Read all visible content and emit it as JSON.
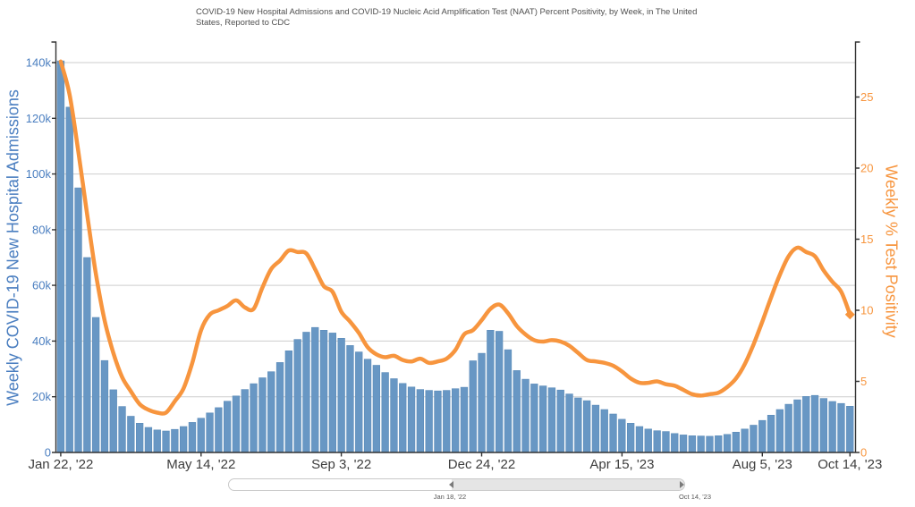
{
  "title": "COVID-19 New Hospital Admissions and COVID-19 Nucleic Acid Amplification Test (NAAT) Percent Positivity, by Week, in The United States, Reported to CDC",
  "left_axis": {
    "title": "Weekly COVID-19 New Hospital Admissions",
    "color": "#4a7ec0",
    "tick_labels": [
      "0",
      "20k",
      "40k",
      "60k",
      "80k",
      "100k",
      "120k",
      "140k"
    ],
    "tick_values_k": [
      0,
      20,
      40,
      60,
      80,
      100,
      120,
      140
    ]
  },
  "right_axis": {
    "title": "Weekly % Test Positivity",
    "color": "#f7953e",
    "tick_labels": [
      "0",
      "5",
      "10",
      "15",
      "20",
      "25"
    ],
    "tick_values": [
      0,
      5,
      10,
      15,
      20,
      25
    ]
  },
  "x_axis": {
    "tick_labels": [
      "Jan 22, '22",
      "May 14, '22",
      "Sep 3, '22",
      "Dec 24, '22",
      "Apr 15, '23",
      "Aug 5, '23",
      "Oct 14, '23"
    ],
    "tick_weeks": [
      1,
      17,
      33,
      49,
      65,
      81,
      91
    ],
    "color": "#3d3d3d"
  },
  "scrollbar": {
    "start_label": "Jan 18, '22",
    "end_label": "Oct 14, '23"
  },
  "chart_data": {
    "type": "bar+line",
    "title": "COVID-19 New Hospital Admissions and COVID-19 NAAT Percent Positivity, by Week, in The United States, Reported to CDC",
    "grid": "horizontal",
    "left_ylim_k": [
      0,
      147.4
    ],
    "right_ylim": [
      0,
      28.9
    ],
    "x": [
      "Jan 22, '22",
      "Jan 29, '22",
      "Feb 5, '22",
      "Feb 12, '22",
      "Feb 19, '22",
      "Feb 26, '22",
      "Mar 5, '22",
      "Mar 12, '22",
      "Mar 19, '22",
      "Mar 26, '22",
      "Apr 2, '22",
      "Apr 9, '22",
      "Apr 16, '22",
      "Apr 23, '22",
      "Apr 30, '22",
      "May 7, '22",
      "May 14, '22",
      "May 21, '22",
      "May 28, '22",
      "Jun 4, '22",
      "Jun 11, '22",
      "Jun 18, '22",
      "Jun 25, '22",
      "Jul 2, '22",
      "Jul 9, '22",
      "Jul 16, '22",
      "Jul 23, '22",
      "Jul 30, '22",
      "Aug 6, '22",
      "Aug 13, '22",
      "Aug 20, '22",
      "Aug 27, '22",
      "Sep 3, '22",
      "Sep 10, '22",
      "Sep 17, '22",
      "Sep 24, '22",
      "Oct 1, '22",
      "Oct 8, '22",
      "Oct 15, '22",
      "Oct 22, '22",
      "Oct 29, '22",
      "Nov 5, '22",
      "Nov 12, '22",
      "Nov 19, '22",
      "Nov 26, '22",
      "Dec 3, '22",
      "Dec 10, '22",
      "Dec 17, '22",
      "Dec 24, '22",
      "Dec 31, '22",
      "Jan 7, '23",
      "Jan 14, '23",
      "Jan 21, '23",
      "Jan 28, '23",
      "Feb 4, '23",
      "Feb 11, '23",
      "Feb 18, '23",
      "Feb 25, '23",
      "Mar 4, '23",
      "Mar 11, '23",
      "Mar 18, '23",
      "Mar 25, '23",
      "Apr 1, '23",
      "Apr 8, '23",
      "Apr 15, '23",
      "Apr 22, '23",
      "Apr 29, '23",
      "May 6, '23",
      "May 13, '23",
      "May 20, '23",
      "May 27, '23",
      "Jun 3, '23",
      "Jun 10, '23",
      "Jun 17, '23",
      "Jun 24, '23",
      "Jul 1, '23",
      "Jul 8, '23",
      "Jul 15, '23",
      "Jul 22, '23",
      "Jul 29, '23",
      "Aug 5, '23",
      "Aug 12, '23",
      "Aug 19, '23",
      "Aug 26, '23",
      "Sep 2, '23",
      "Sep 9, '23",
      "Sep 16, '23",
      "Sep 23, '23",
      "Sep 30, '23",
      "Oct 7, '23",
      "Oct 14, '23"
    ],
    "series": [
      {
        "name": "Weekly COVID-19 New Hospital Admissions",
        "type": "bar",
        "y_axis": "left",
        "color": "#6897c4",
        "units": "admissions (thousands)",
        "values": [
          140.6,
          124.0,
          95.0,
          70.0,
          48.5,
          33.0,
          22.5,
          16.5,
          13.0,
          10.5,
          9.0,
          8.1,
          7.7,
          8.3,
          9.3,
          10.8,
          12.3,
          14.2,
          16.1,
          18.4,
          20.3,
          22.6,
          24.7,
          26.8,
          29.0,
          32.3,
          36.5,
          40.6,
          43.2,
          44.9,
          43.9,
          42.9,
          41.0,
          38.4,
          36.1,
          33.5,
          31.3,
          28.7,
          26.5,
          24.8,
          23.5,
          22.6,
          22.3,
          22.1,
          22.3,
          22.9,
          23.4,
          32.9,
          35.6,
          43.9,
          43.5,
          36.9,
          29.4,
          26.3,
          24.6,
          23.9,
          23.2,
          22.4,
          21.0,
          19.6,
          18.6,
          17.0,
          15.4,
          13.8,
          11.9,
          10.5,
          9.3,
          8.4,
          7.8,
          7.5,
          6.8,
          6.3,
          6.0,
          5.9,
          5.8,
          6.0,
          6.5,
          7.3,
          8.4,
          9.8,
          11.5,
          13.4,
          15.4,
          17.3,
          18.9,
          20.1,
          20.5,
          19.4,
          18.3,
          17.6,
          16.6
        ]
      },
      {
        "name": "Weekly % Test Positivity",
        "type": "line",
        "y_axis": "right",
        "color": "#f7953e",
        "units": "percent",
        "values": [
          27.5,
          25.2,
          21.2,
          16.8,
          12.6,
          9.3,
          7.0,
          5.3,
          4.3,
          3.4,
          3.0,
          2.8,
          2.8,
          3.6,
          4.5,
          6.3,
          8.6,
          9.7,
          10.0,
          10.3,
          10.7,
          10.2,
          10.1,
          11.6,
          12.9,
          13.5,
          14.2,
          14.1,
          14.0,
          12.9,
          11.7,
          11.3,
          9.9,
          9.2,
          8.4,
          7.4,
          6.9,
          6.7,
          6.8,
          6.5,
          6.4,
          6.6,
          6.3,
          6.4,
          6.6,
          7.2,
          8.3,
          8.6,
          9.3,
          10.1,
          10.4,
          9.8,
          8.9,
          8.3,
          7.9,
          7.8,
          7.9,
          7.8,
          7.5,
          7.0,
          6.5,
          6.4,
          6.3,
          6.1,
          5.7,
          5.2,
          4.9,
          4.9,
          5.0,
          4.8,
          4.7,
          4.4,
          4.1,
          4.0,
          4.1,
          4.2,
          4.6,
          5.2,
          6.2,
          7.6,
          9.2,
          10.9,
          12.5,
          13.8,
          14.4,
          14.1,
          13.8,
          12.8,
          12.0,
          11.3,
          9.7
        ]
      }
    ]
  }
}
